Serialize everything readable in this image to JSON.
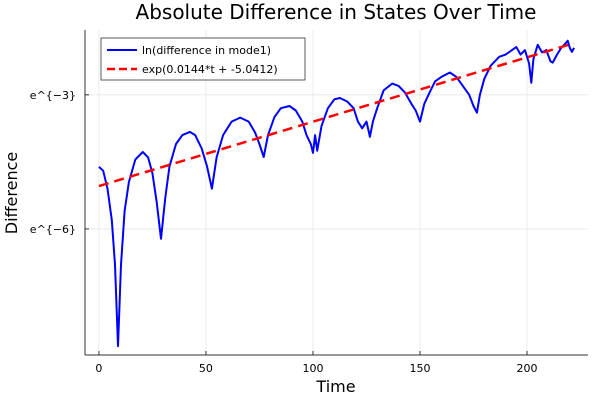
{
  "chart_data": {
    "type": "line",
    "title": "Absolute Difference in States Over Time",
    "xlabel": "Time",
    "ylabel": "Difference",
    "y_scale": "log (base e)",
    "xlim": [
      -6.5,
      228.5
    ],
    "ylim_ln": [
      -8.82,
      -1.55
    ],
    "x_ticks": [
      0,
      50,
      100,
      150,
      200
    ],
    "x_tick_labels": [
      "0",
      "50",
      "100",
      "150",
      "200"
    ],
    "y_ticks_ln": [
      -3,
      -6
    ],
    "y_tick_labels": [
      "e^{−3}",
      "e^{−6}"
    ],
    "grid": true,
    "legend_placement": "top-left",
    "series": [
      {
        "name": "ln(difference in mode1)",
        "color": "#0000ff",
        "style": "solid",
        "x": [
          0,
          2,
          4,
          6,
          7.5,
          8.9,
          10.3,
          12,
          14,
          17,
          20.5,
          23,
          25,
          27,
          29,
          31,
          33,
          36,
          39,
          42.5,
          45,
          48,
          50.5,
          52.8,
          55,
          58,
          62,
          66,
          70,
          73,
          75,
          77,
          79,
          82,
          85,
          89,
          92,
          95,
          97,
          99,
          100,
          101,
          102,
          104,
          107,
          110,
          112.6,
          116,
          119,
          121,
          123,
          125,
          126.6,
          128,
          130,
          133,
          137,
          140,
          143,
          146,
          148,
          150,
          152,
          154,
          157,
          160,
          164,
          167,
          170,
          173,
          175,
          176.6,
          178,
          180,
          183,
          187,
          190,
          193,
          195,
          197,
          199,
          201,
          202,
          203,
          205,
          207,
          209,
          211,
          212,
          214,
          216,
          218,
          219,
          220,
          221,
          222
        ],
        "y_ln": [
          -4.61,
          -4.7,
          -5.1,
          -5.8,
          -6.8,
          -8.62,
          -6.8,
          -5.6,
          -4.95,
          -4.45,
          -4.28,
          -4.4,
          -4.75,
          -5.4,
          -6.22,
          -5.3,
          -4.6,
          -4.1,
          -3.9,
          -3.83,
          -3.9,
          -4.2,
          -4.6,
          -5.1,
          -4.4,
          -3.9,
          -3.6,
          -3.51,
          -3.6,
          -3.85,
          -4.1,
          -4.39,
          -3.9,
          -3.5,
          -3.3,
          -3.25,
          -3.35,
          -3.6,
          -3.9,
          -4.1,
          -4.3,
          -3.9,
          -4.25,
          -3.7,
          -3.3,
          -3.1,
          -3.07,
          -3.15,
          -3.3,
          -3.6,
          -3.75,
          -3.6,
          -3.94,
          -3.6,
          -3.3,
          -2.9,
          -2.75,
          -2.8,
          -2.95,
          -3.2,
          -3.35,
          -3.6,
          -3.2,
          -3.0,
          -2.7,
          -2.6,
          -2.5,
          -2.6,
          -2.8,
          -3.0,
          -3.25,
          -3.4,
          -3.0,
          -2.65,
          -2.35,
          -2.15,
          -2.1,
          -2.0,
          -1.93,
          -2.1,
          -2.0,
          -2.3,
          -2.73,
          -2.2,
          -1.88,
          -2.05,
          -2.0,
          -2.25,
          -2.28,
          -2.1,
          -1.95,
          -1.85,
          -1.79,
          -1.95,
          -2.04,
          -1.95
        ]
      },
      {
        "name": "exp(0.0144*t + -5.0412)",
        "color": "#ff0000",
        "style": "dashed",
        "slope": 0.0144,
        "intercept": -5.0412,
        "x_range": [
          0,
          222
        ]
      }
    ]
  }
}
